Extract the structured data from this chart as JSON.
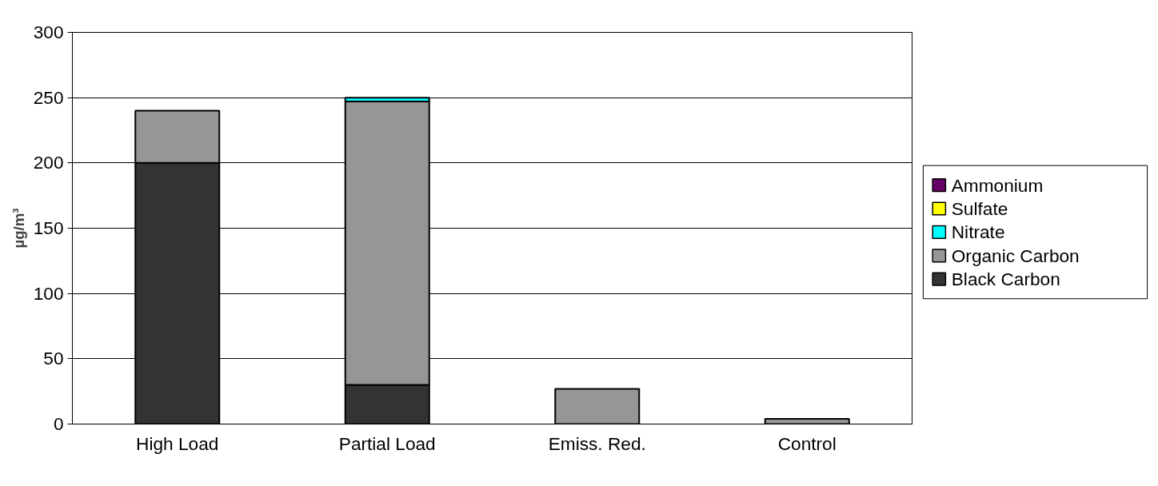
{
  "chart_data": {
    "type": "bar",
    "stacked": true,
    "ylabel": "µg/m³",
    "categories": [
      "High Load",
      "Partial Load",
      "Emiss. Red.",
      "Control"
    ],
    "series": [
      {
        "name": "Black Carbon",
        "color": "#333333",
        "values": [
          200,
          30,
          0,
          0
        ]
      },
      {
        "name": "Organic Carbon",
        "color": "#969696",
        "values": [
          40,
          217,
          27,
          4
        ]
      },
      {
        "name": "Nitrate",
        "color": "#00ffff",
        "values": [
          0,
          3,
          0,
          0
        ]
      },
      {
        "name": "Sulfate",
        "color": "#ffff00",
        "values": [
          0,
          0,
          0,
          0
        ]
      },
      {
        "name": "Ammonium",
        "color": "#660066",
        "values": [
          0,
          0,
          0,
          0
        ]
      }
    ],
    "ylim": [
      0,
      300
    ],
    "yticks": [
      0,
      50,
      100,
      150,
      200,
      250,
      300
    ],
    "grid": "y",
    "legend": "right"
  }
}
